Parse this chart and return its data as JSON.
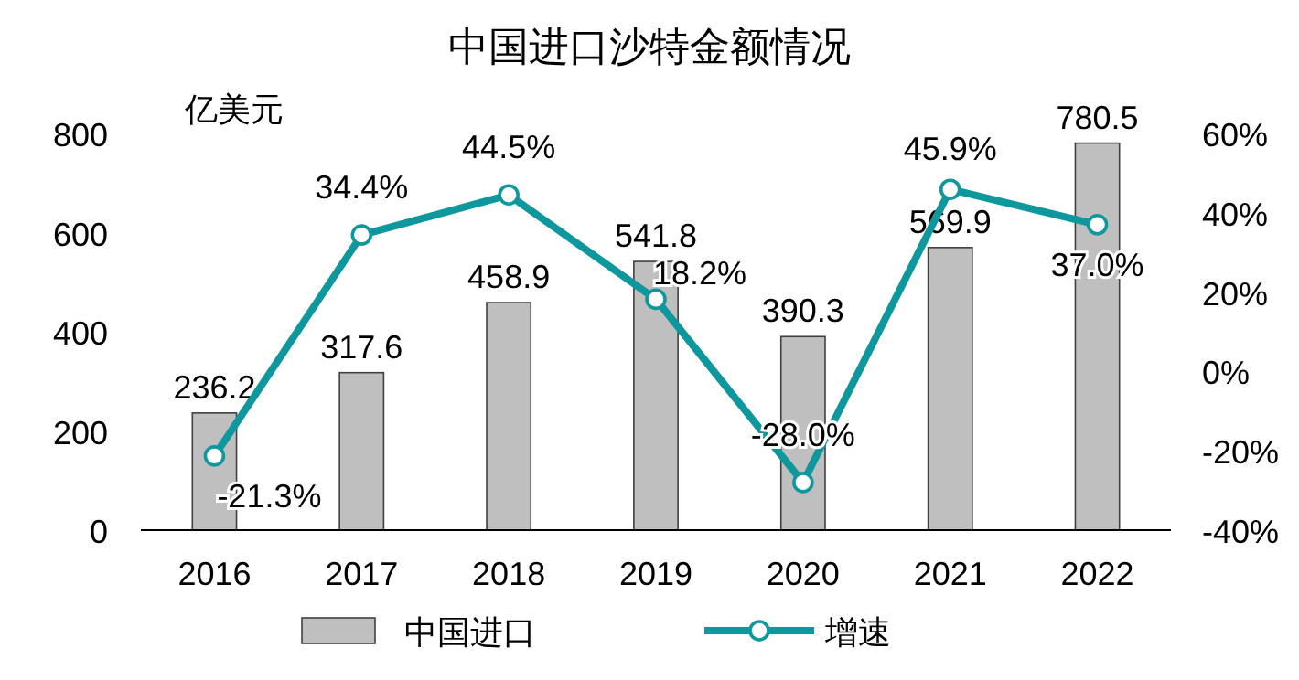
{
  "chart_data": {
    "type": "bar",
    "title": "中国进口沙特金额情况",
    "annotations": [
      "亿美元"
    ],
    "categories": [
      "2016",
      "2017",
      "2018",
      "2019",
      "2020",
      "2021",
      "2022"
    ],
    "ylim": [
      0,
      800
    ],
    "yticks": [
      0,
      200,
      400,
      600,
      800
    ],
    "y2lim": [
      -40,
      60
    ],
    "y2ticks": [
      {
        "value": -40,
        "label": "-40%"
      },
      {
        "value": -20,
        "label": "-20%"
      },
      {
        "value": 0,
        "label": "0%"
      },
      {
        "value": 20,
        "label": "20%"
      },
      {
        "value": 40,
        "label": "40%"
      },
      {
        "value": 60,
        "label": "60%"
      }
    ],
    "series": [
      {
        "name": "中国进口",
        "color": "#bfbfbf",
        "values": [
          236.2,
          317.6,
          458.9,
          541.8,
          390.3,
          569.9,
          780.5
        ],
        "value_labels": [
          "236.2",
          "317.6",
          "458.9",
          "541.8",
          "390.3",
          "569.9",
          "780.5"
        ]
      },
      {
        "name": "增速",
        "type": "line",
        "axis": "y2",
        "color": "#0e979c",
        "marker": "circle",
        "values": [
          -21.3,
          34.4,
          44.5,
          18.2,
          -28.0,
          45.9,
          37.0
        ],
        "value_labels": [
          "-21.3%",
          "34.4%",
          "44.5%",
          "18.2%",
          "-28.0%",
          "45.9%",
          "37.0%"
        ]
      }
    ],
    "grid": false,
    "legend": "bottom"
  }
}
